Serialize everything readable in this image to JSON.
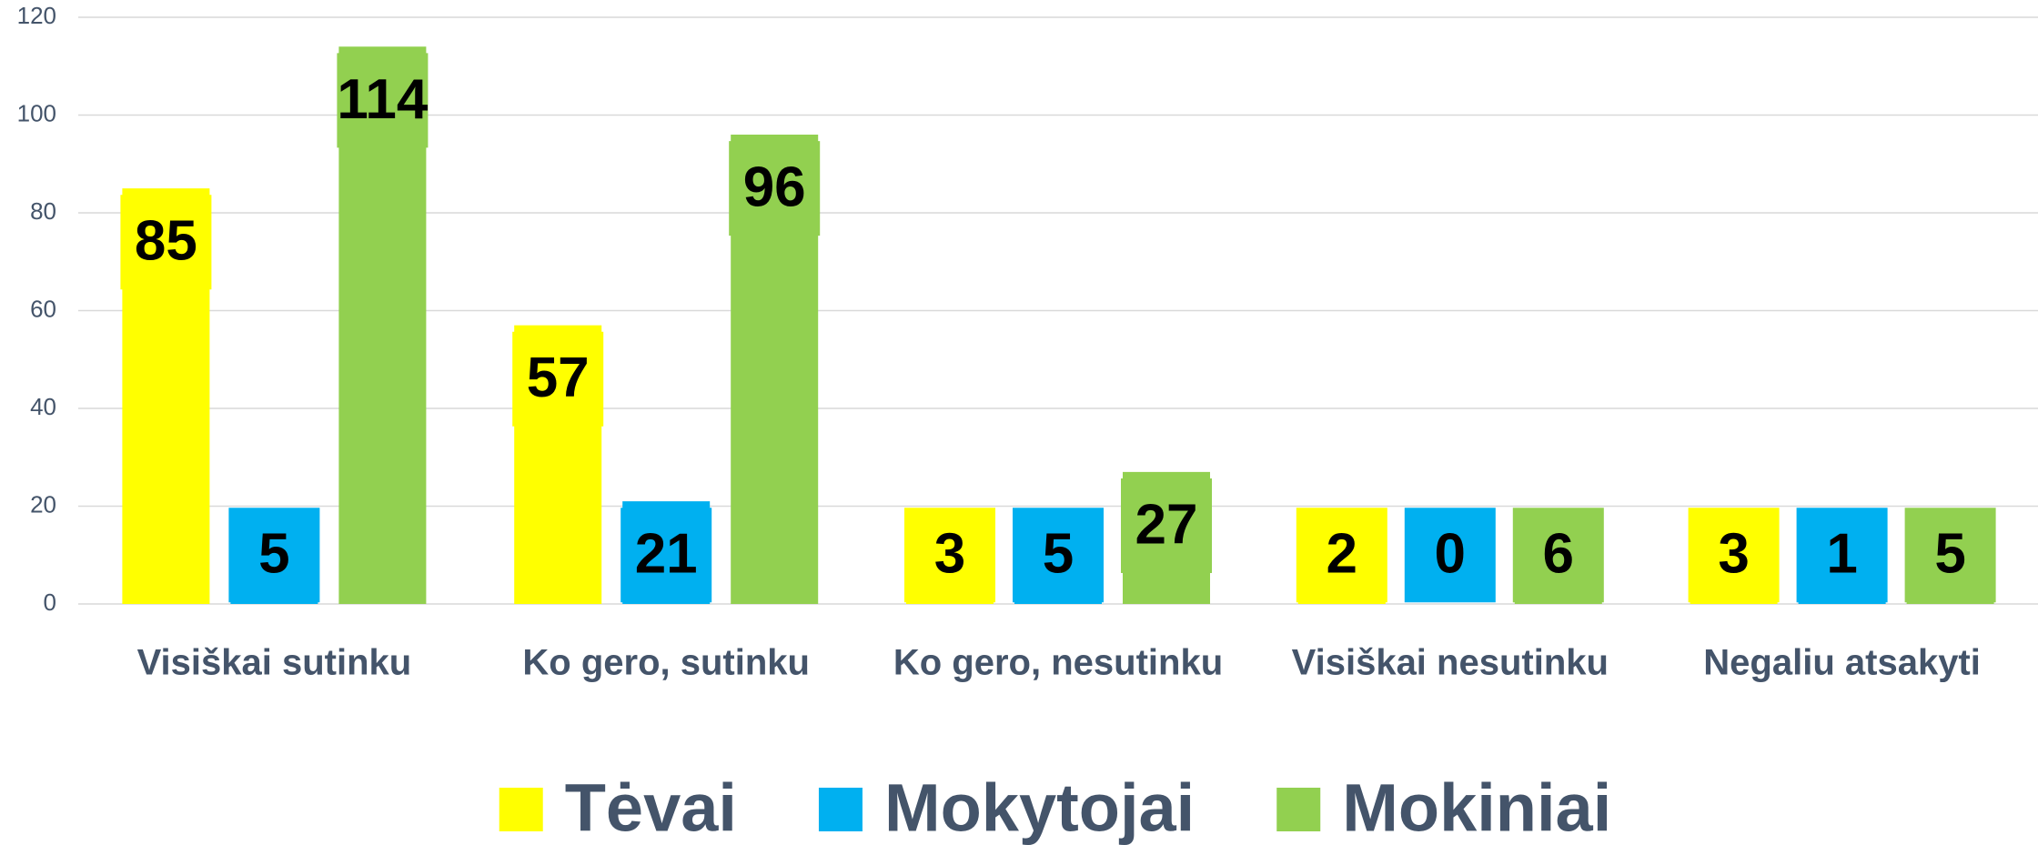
{
  "chart_data": {
    "type": "bar",
    "categories": [
      "Visiškai sutinku",
      "Ko gero, sutinku",
      "Ko gero, nesutinku",
      "Visiškai nesutinku",
      "Negaliu atsakyti"
    ],
    "series": [
      {
        "name": "Tėvai",
        "color": "#ffff00",
        "values": [
          85,
          57,
          3,
          2,
          3
        ]
      },
      {
        "name": "Mokytojai",
        "color": "#00b0f0",
        "values": [
          5,
          21,
          5,
          0,
          1
        ]
      },
      {
        "name": "Mokiniai",
        "color": "#92d050",
        "values": [
          114,
          96,
          27,
          6,
          5
        ]
      }
    ],
    "ylim": [
      0,
      120
    ],
    "yticks": [
      0,
      20,
      40,
      60,
      80,
      100,
      120
    ],
    "grid": true,
    "legend": "bottom"
  }
}
